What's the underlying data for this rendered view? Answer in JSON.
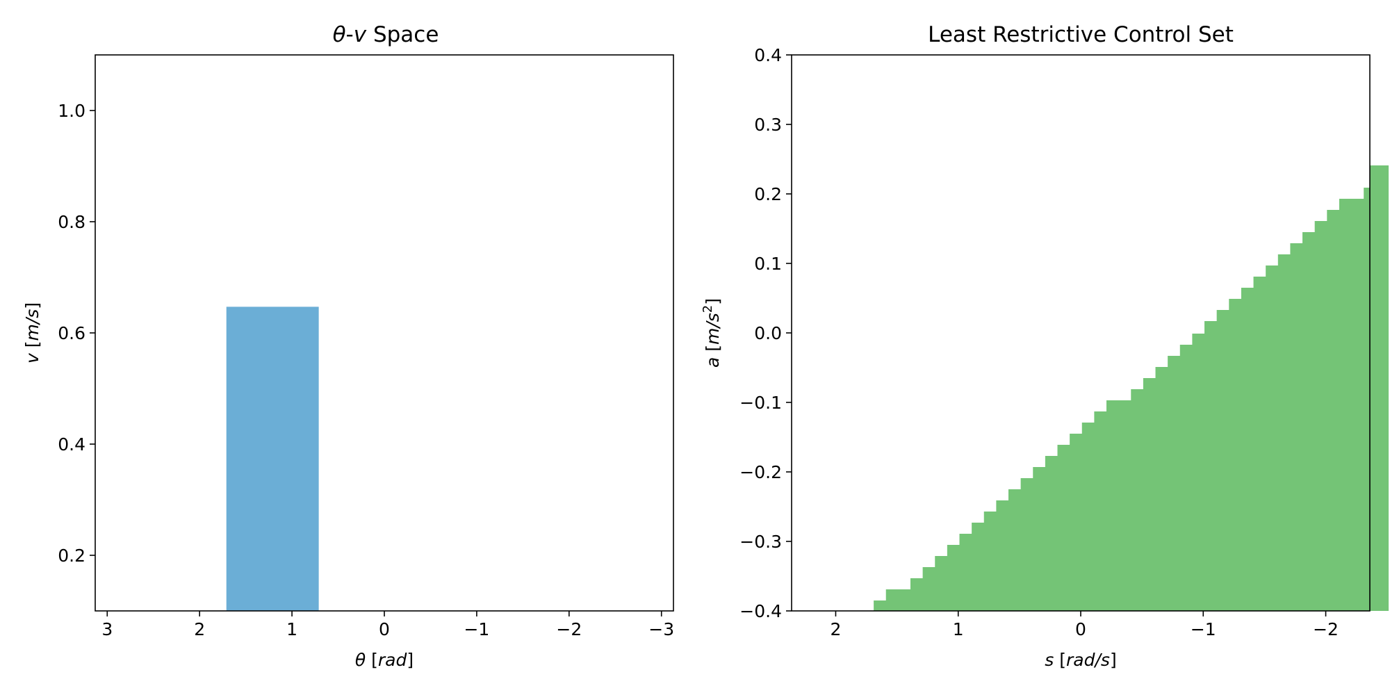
{
  "chart_data": [
    {
      "type": "bar",
      "title": {
        "sym1": "θ",
        "dash": "-",
        "sym2": "v",
        "rest": " Space"
      },
      "xlabel": {
        "sym": "θ",
        "unit": "rad"
      },
      "ylabel": {
        "sym": "v",
        "unit": "m/s"
      },
      "xlim": [
        3.13,
        -3.13
      ],
      "ylim": [
        0.1,
        1.1
      ],
      "x_ticks": [
        3,
        2,
        1,
        0,
        -1,
        -2,
        -3
      ],
      "x_tick_labels": [
        "3",
        "2",
        "1",
        "0",
        "−1",
        "−2",
        "−3"
      ],
      "y_ticks": [
        0.2,
        0.4,
        0.6,
        0.8,
        1.0
      ],
      "y_tick_labels": [
        "0.2",
        "0.4",
        "0.6",
        "0.8",
        "1.0"
      ],
      "bars": [
        {
          "x0": 1.71,
          "x1": 0.71,
          "y0": 0.1,
          "y1": 0.647
        }
      ],
      "color": "#6baed6",
      "grid": false
    },
    {
      "type": "area",
      "title": "Least Restrictive Control Set",
      "xlabel": {
        "sym": "s",
        "unit": "rad/s"
      },
      "ylabel": {
        "sym": "a",
        "unit": "m/s",
        "exp": "2"
      },
      "xlim": [
        2.36,
        -2.36
      ],
      "ylim": [
        -0.4,
        0.4
      ],
      "x_ticks": [
        2,
        1,
        0,
        -1,
        -2
      ],
      "x_tick_labels": [
        "2",
        "1",
        "0",
        "−1",
        "−2"
      ],
      "y_ticks": [
        -0.4,
        -0.3,
        -0.2,
        -0.1,
        0.0,
        0.1,
        0.2,
        0.3,
        0.4
      ],
      "y_tick_labels": [
        "−0.4",
        "−0.3",
        "−0.2",
        "−0.1",
        "0.0",
        "0.1",
        "0.2",
        "0.3",
        "0.4"
      ],
      "step_bins": {
        "s_start": 1.69,
        "s_end": -2.36,
        "width": 0.1
      },
      "boundary_a": [
        -0.385,
        -0.369,
        -0.369,
        -0.353,
        -0.337,
        -0.321,
        -0.305,
        -0.289,
        -0.273,
        -0.257,
        -0.241,
        -0.225,
        -0.209,
        -0.193,
        -0.177,
        -0.161,
        -0.145,
        -0.129,
        -0.113,
        -0.097,
        -0.097,
        -0.081,
        -0.065,
        -0.049,
        -0.033,
        -0.017,
        -0.001,
        0.017,
        0.033,
        0.049,
        0.065,
        0.081,
        0.097,
        0.113,
        0.129,
        0.145,
        0.161,
        0.177,
        0.193,
        0.193,
        0.209,
        0.225,
        0.241
      ],
      "color": "#74c476",
      "grid": false
    }
  ]
}
